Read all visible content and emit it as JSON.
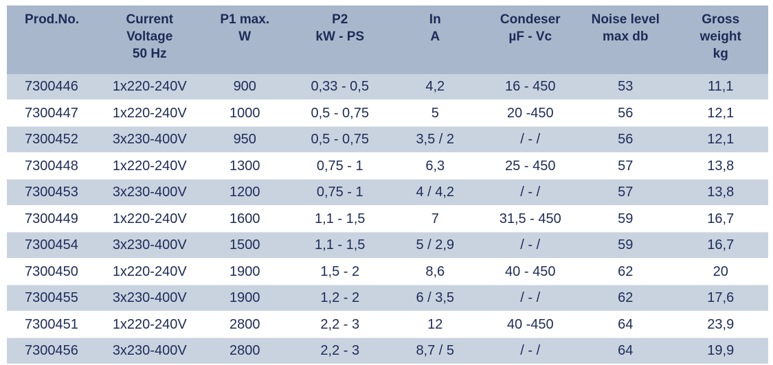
{
  "table": {
    "header": [
      [
        "Prod.No."
      ],
      [
        "Current",
        "Voltage",
        "50 Hz"
      ],
      [
        "P1 max.",
        "W"
      ],
      [
        "P2",
        "kW - PS"
      ],
      [
        "In",
        "A"
      ],
      [
        "Condeser",
        "µF - Vc"
      ],
      [
        "Noise level",
        "max db"
      ],
      [
        "Gross",
        "weight",
        "kg"
      ]
    ],
    "rows": [
      [
        "7300446",
        "1x220-240V",
        "900",
        "0,33 - 0,5",
        "4,2",
        "16 - 450",
        "53",
        "11,1"
      ],
      [
        "7300447",
        "1x220-240V",
        "1000",
        "0,5 - 0,75",
        "5",
        "20 -450",
        "56",
        "12,1"
      ],
      [
        "7300452",
        "3x230-400V",
        "950",
        "0,5 - 0,75",
        "3,5 / 2",
        "/ - /",
        "56",
        "12,1"
      ],
      [
        "7300448",
        "1x220-240V",
        "1300",
        "0,75 - 1",
        "6,3",
        "25 - 450",
        "57",
        "13,8"
      ],
      [
        "7300453",
        "3x230-400V",
        "1200",
        "0,75 - 1",
        "4 / 4,2",
        "/ - /",
        "57",
        "13,8"
      ],
      [
        "7300449",
        "1x220-240V",
        "1600",
        "1,1 - 1,5",
        "7",
        "31,5 - 450",
        "59",
        "16,7"
      ],
      [
        "7300454",
        "3x230-400V",
        "1500",
        "1,1 - 1,5",
        "5 / 2,9",
        "/ - /",
        "59",
        "16,7"
      ],
      [
        "7300450",
        "1x220-240V",
        "1900",
        "1,5 - 2",
        "8,6",
        "40 - 450",
        "62",
        "20"
      ],
      [
        "7300455",
        "3x230-400V",
        "1900",
        "1,2 - 2",
        "6 / 3,5",
        "/ - /",
        "62",
        "17,6"
      ],
      [
        "7300451",
        "1x220-240V",
        "2800",
        "2,2 - 3",
        "12",
        "40 -450",
        "64",
        "23,9"
      ],
      [
        "7300456",
        "3x230-400V",
        "2800",
        "2,2 - 3",
        "8,7 / 5",
        "/ - /",
        "64",
        "19,9"
      ]
    ]
  }
}
